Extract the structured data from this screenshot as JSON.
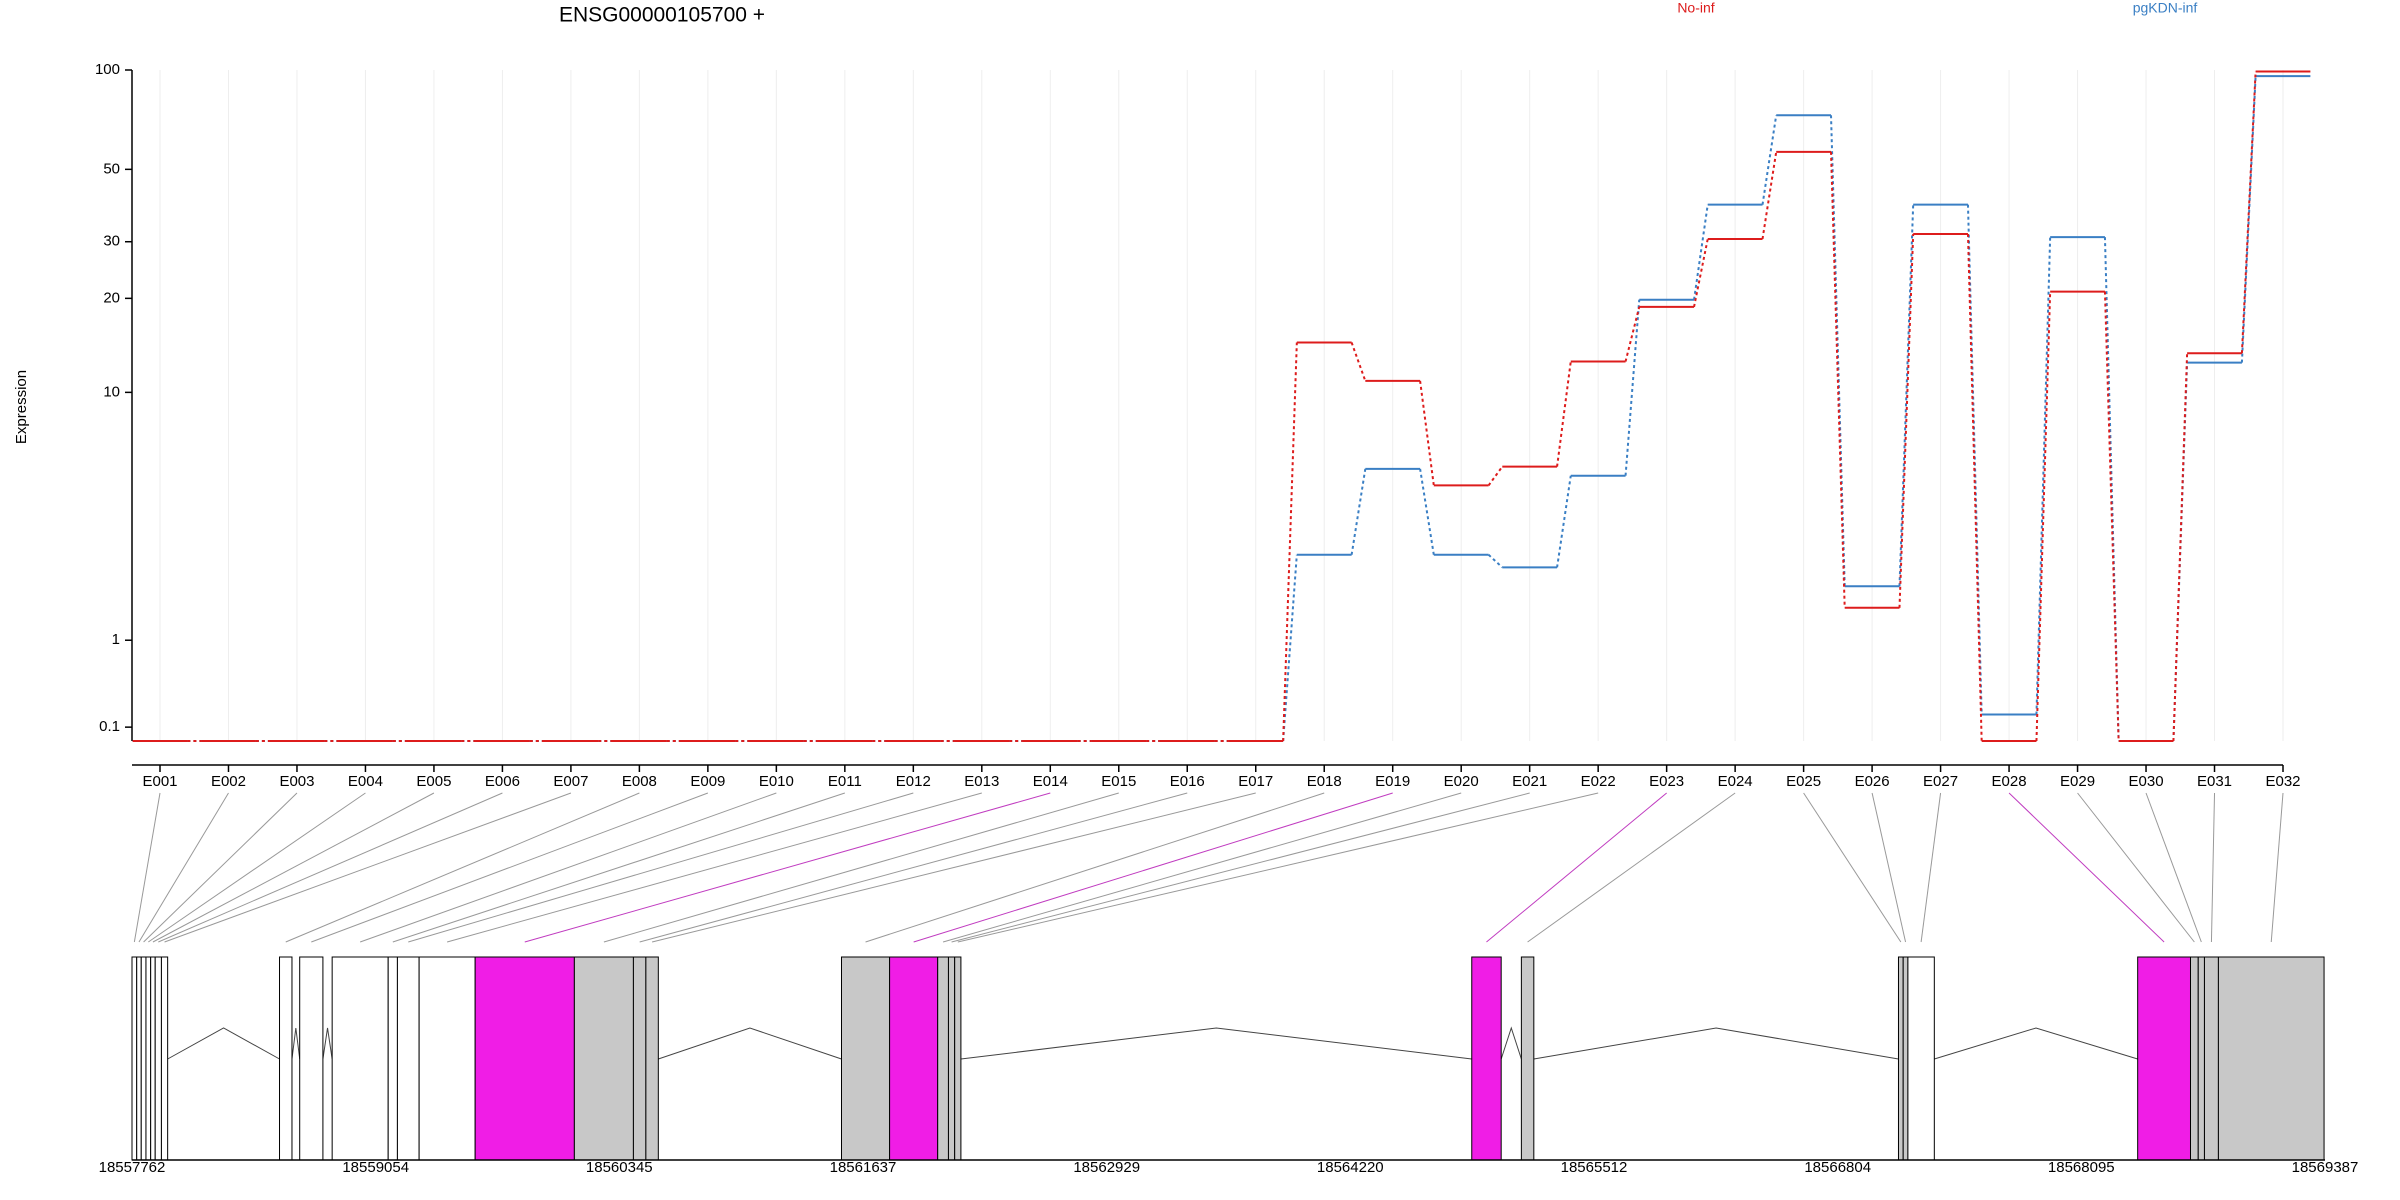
{
  "chart_data": {
    "type": "line",
    "title": "ENSG00000105700 +",
    "ylabel": "Expression",
    "yscale": "log1p",
    "categories": [
      "E001",
      "E002",
      "E003",
      "E004",
      "E005",
      "E006",
      "E007",
      "E008",
      "E009",
      "E010",
      "E011",
      "E012",
      "E013",
      "E014",
      "E015",
      "E016",
      "E017",
      "E018",
      "E019",
      "E020",
      "E021",
      "E022",
      "E023",
      "E024",
      "E025",
      "E026",
      "E027",
      "E028",
      "E029",
      "E030",
      "E031",
      "E032"
    ],
    "series": [
      {
        "name": "No-inf",
        "color": "#dd1c1c",
        "values": [
          0,
          0,
          0,
          0,
          0,
          0,
          0,
          0,
          0,
          0,
          0,
          0,
          0,
          0,
          0,
          0,
          0,
          14.5,
          10.9,
          4.8,
          5.6,
          12.6,
          18.8,
          30.6,
          56.5,
          1.5,
          31.7,
          0,
          21,
          0,
          13.4,
          99
        ]
      },
      {
        "name": "pgKDN-inf",
        "color": "#3a7fc4",
        "values": [
          0,
          0,
          0,
          0,
          0,
          0,
          0,
          0,
          0,
          0,
          0,
          0,
          0,
          0,
          0,
          0,
          0,
          2.6,
          5.5,
          2.6,
          2.3,
          5.2,
          19.8,
          39,
          73,
          1.9,
          39,
          0.2,
          31,
          0,
          12.5,
          95.8
        ]
      }
    ],
    "ylim": [
      0,
      100
    ],
    "yticks": [
      0.1,
      1,
      10,
      20,
      30,
      50,
      100
    ],
    "grid": true,
    "gene_model": {
      "xlim": [
        18557762,
        18569387
      ],
      "xticks": [
        18557762,
        18559054,
        18560345,
        18561637,
        18562929,
        18564220,
        18565512,
        18566804,
        18568095,
        18569387
      ],
      "exon_start": [
        18557762,
        18557787,
        18557811,
        18557836,
        18557861,
        18557885,
        18557918,
        18558544,
        18558651,
        18558823,
        18559120,
        18559169,
        18559284,
        18559581,
        18560107,
        18560420,
        18560486,
        18561523,
        18561778,
        18562033,
        18562090,
        18562123,
        18564864,
        18565127,
        18567126,
        18567151,
        18567176,
        18568394,
        18568674,
        18568715,
        18568748,
        18568822
      ],
      "exon_end": [
        18557787,
        18557811,
        18557836,
        18557861,
        18557885,
        18557918,
        18557951,
        18558610,
        18558774,
        18559120,
        18559169,
        18559284,
        18559581,
        18560107,
        18560420,
        18560486,
        18560552,
        18561778,
        18562033,
        18562090,
        18562123,
        18562156,
        18565020,
        18565193,
        18567151,
        18567176,
        18567316,
        18568674,
        18568715,
        18568748,
        18568822,
        18569382
      ],
      "exon_colors": [
        "#ffffff",
        "#ffffff",
        "#ffffff",
        "#ffffff",
        "#ffffff",
        "#ffffff",
        "#ffffff",
        "#ffffff",
        "#ffffff",
        "#ffffff",
        "#ffffff",
        "#ffffff",
        "#ffffff",
        "#f01de6",
        "#c8c8c8",
        "#c8c8c8",
        "#c8c8c8",
        "#c8c8c8",
        "#f01de6",
        "#c8c8c8",
        "#c8c8c8",
        "#c8c8c8",
        "#f01de6",
        "#c8c8c8",
        "#c8c8c8",
        "#c8c8c8",
        "#ffffff",
        "#f01de6",
        "#c8c8c8",
        "#c8c8c8",
        "#c8c8c8",
        "#c8c8c8"
      ]
    }
  }
}
